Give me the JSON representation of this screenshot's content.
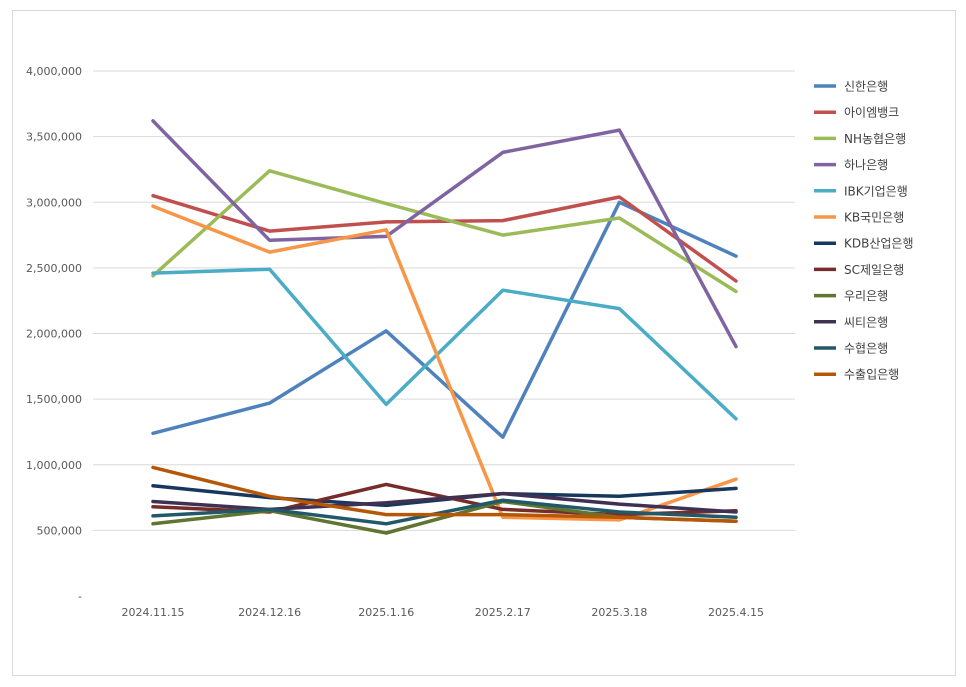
{
  "chart_data": {
    "type": "line",
    "categories": [
      "2024.11.15",
      "2024.12.16",
      "2025.1.16",
      "2025.2.17",
      "2025.3.18",
      "2025.4.15"
    ],
    "ylim": [
      0,
      4000000
    ],
    "yticks": [
      0,
      500000,
      1000000,
      1500000,
      2000000,
      2500000,
      3000000,
      3500000,
      4000000
    ],
    "ytick_labels": [
      "-",
      "500,000",
      "1,000,000",
      "1,500,000",
      "2,000,000",
      "2,500,000",
      "3,000,000",
      "3,500,000",
      "4,000,000"
    ],
    "grid": true,
    "legend_position": "right",
    "series": [
      {
        "name": "신한은행",
        "color": "#4F81BD",
        "values": [
          1240000,
          1470000,
          2020000,
          1210000,
          3000000,
          2590000
        ]
      },
      {
        "name": "아이엠뱅크",
        "color": "#C0504D",
        "values": [
          3050000,
          2780000,
          2850000,
          2860000,
          3040000,
          2400000
        ]
      },
      {
        "name": "NH농협은행",
        "color": "#9BBB59",
        "values": [
          2440000,
          3240000,
          2990000,
          2750000,
          2880000,
          2320000
        ]
      },
      {
        "name": "하나은행",
        "color": "#8064A2",
        "values": [
          3620000,
          2710000,
          2740000,
          3380000,
          3550000,
          1900000
        ]
      },
      {
        "name": "IBK기업은행",
        "color": "#4BACC6",
        "values": [
          2460000,
          2490000,
          1460000,
          2330000,
          2190000,
          1350000
        ]
      },
      {
        "name": "KB국민은행",
        "color": "#F79646",
        "values": [
          2970000,
          2620000,
          2790000,
          600000,
          580000,
          890000
        ]
      },
      {
        "name": "KDB산업은행",
        "color": "#17375E",
        "values": [
          840000,
          750000,
          690000,
          780000,
          760000,
          820000
        ]
      },
      {
        "name": "SC제일은행",
        "color": "#772C2A",
        "values": [
          680000,
          640000,
          850000,
          660000,
          620000,
          650000
        ]
      },
      {
        "name": "우리은행",
        "color": "#5F7530",
        "values": [
          550000,
          650000,
          480000,
          720000,
          600000,
          570000
        ]
      },
      {
        "name": "씨티은행",
        "color": "#403152",
        "values": [
          720000,
          660000,
          710000,
          780000,
          700000,
          640000
        ]
      },
      {
        "name": "수협은행",
        "color": "#215968",
        "values": [
          610000,
          660000,
          550000,
          730000,
          640000,
          600000
        ]
      },
      {
        "name": "수출입은행",
        "color": "#B65708",
        "values": [
          980000,
          760000,
          620000,
          620000,
          600000,
          570000
        ]
      }
    ]
  }
}
